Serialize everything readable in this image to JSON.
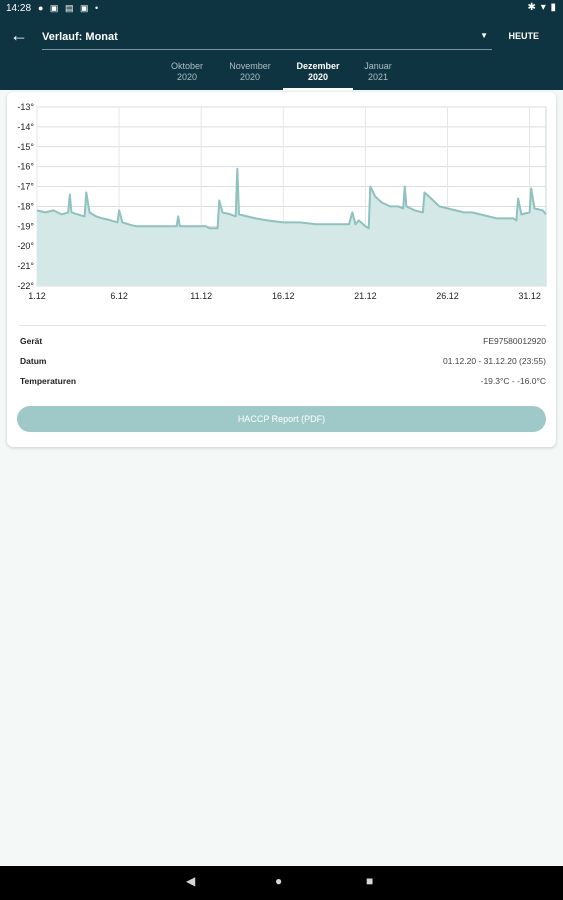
{
  "status_bar": {
    "time": "14:28",
    "left_icons": "● ▣ ▤ ▣ •",
    "right_icons": "✱ ▾ ▮"
  },
  "app_bar": {
    "selector_label": "Verlauf: Monat",
    "today_button": "HEUTE",
    "tabs": [
      {
        "month": "Oktober",
        "year": "2020"
      },
      {
        "month": "November",
        "year": "2020"
      },
      {
        "month": "Dezember",
        "year": "2020",
        "active": true
      },
      {
        "month": "Januar",
        "year": "2021"
      }
    ]
  },
  "chart_data": {
    "type": "area",
    "y_tick_labels": [
      "-13°",
      "-14°",
      "-15°",
      "-16°",
      "-17°",
      "-18°",
      "-19°",
      "-20°",
      "-21°",
      "-22°"
    ],
    "ylim": [
      -22,
      -13
    ],
    "x_tick_labels": [
      "1.12",
      "6.12",
      "11.12",
      "16.12",
      "21.12",
      "26.12",
      "31.12"
    ],
    "x_tick_days": [
      1,
      6,
      11,
      16,
      21,
      26,
      31
    ],
    "xlim": [
      1,
      32
    ],
    "grid": true,
    "series": [
      {
        "color": "#8fc1be",
        "fill": "#d4e8e7",
        "points": [
          [
            1,
            -18.2
          ],
          [
            1.5,
            -18.3
          ],
          [
            2,
            -18.2
          ],
          [
            2.5,
            -18.4
          ],
          [
            2.9,
            -18.3
          ],
          [
            3.0,
            -17.4
          ],
          [
            3.1,
            -18.3
          ],
          [
            3.5,
            -18.4
          ],
          [
            3.9,
            -18.5
          ],
          [
            4.0,
            -17.3
          ],
          [
            4.2,
            -18.3
          ],
          [
            4.6,
            -18.5
          ],
          [
            5,
            -18.6
          ],
          [
            5.5,
            -18.7
          ],
          [
            5.9,
            -18.8
          ],
          [
            6.0,
            -18.2
          ],
          [
            6.2,
            -18.8
          ],
          [
            7,
            -19.0
          ],
          [
            8,
            -19.0
          ],
          [
            9,
            -19.0
          ],
          [
            9.5,
            -19.0
          ],
          [
            9.6,
            -18.5
          ],
          [
            9.7,
            -19.0
          ],
          [
            10.5,
            -19.0
          ],
          [
            11.3,
            -19.0
          ],
          [
            11.5,
            -19.1
          ],
          [
            12,
            -19.1
          ],
          [
            12.1,
            -17.7
          ],
          [
            12.3,
            -18.3
          ],
          [
            12.8,
            -18.4
          ],
          [
            13.1,
            -18.5
          ],
          [
            13.2,
            -16.1
          ],
          [
            13.3,
            -18.4
          ],
          [
            13.8,
            -18.5
          ],
          [
            14.3,
            -18.6
          ],
          [
            15,
            -18.7
          ],
          [
            16,
            -18.8
          ],
          [
            17,
            -18.8
          ],
          [
            18,
            -18.9
          ],
          [
            19,
            -18.9
          ],
          [
            20,
            -18.9
          ],
          [
            20.2,
            -18.3
          ],
          [
            20.4,
            -18.9
          ],
          [
            20.6,
            -18.7
          ],
          [
            21,
            -19.0
          ],
          [
            21.2,
            -19.1
          ],
          [
            21.3,
            -17.0
          ],
          [
            21.6,
            -17.5
          ],
          [
            22,
            -17.8
          ],
          [
            22.5,
            -18.0
          ],
          [
            23,
            -18.0
          ],
          [
            23.3,
            -18.1
          ],
          [
            23.4,
            -17.0
          ],
          [
            23.5,
            -18.0
          ],
          [
            24,
            -18.2
          ],
          [
            24.5,
            -18.3
          ],
          [
            24.6,
            -17.3
          ],
          [
            25,
            -17.6
          ],
          [
            25.5,
            -18.0
          ],
          [
            26,
            -18.1
          ],
          [
            26.5,
            -18.2
          ],
          [
            27,
            -18.3
          ],
          [
            27.5,
            -18.3
          ],
          [
            28,
            -18.4
          ],
          [
            28.5,
            -18.5
          ],
          [
            29,
            -18.6
          ],
          [
            29.5,
            -18.6
          ],
          [
            30,
            -18.6
          ],
          [
            30.2,
            -18.7
          ],
          [
            30.3,
            -17.6
          ],
          [
            30.5,
            -18.4
          ],
          [
            31,
            -18.3
          ],
          [
            31.1,
            -17.1
          ],
          [
            31.3,
            -18.1
          ],
          [
            31.8,
            -18.2
          ],
          [
            32,
            -18.4
          ]
        ]
      }
    ]
  },
  "details": [
    {
      "key": "Gerät",
      "value": "FE97580012920"
    },
    {
      "key": "Datum",
      "value": "01.12.20 - 31.12.20 (23:55)"
    },
    {
      "key": "Temperaturen",
      "value": "-19.3°C - -16.0°C"
    }
  ],
  "haccp_button": "HACCP Report (PDF)",
  "nav_bar": {
    "back": "◀",
    "home": "●",
    "recents": "■"
  }
}
